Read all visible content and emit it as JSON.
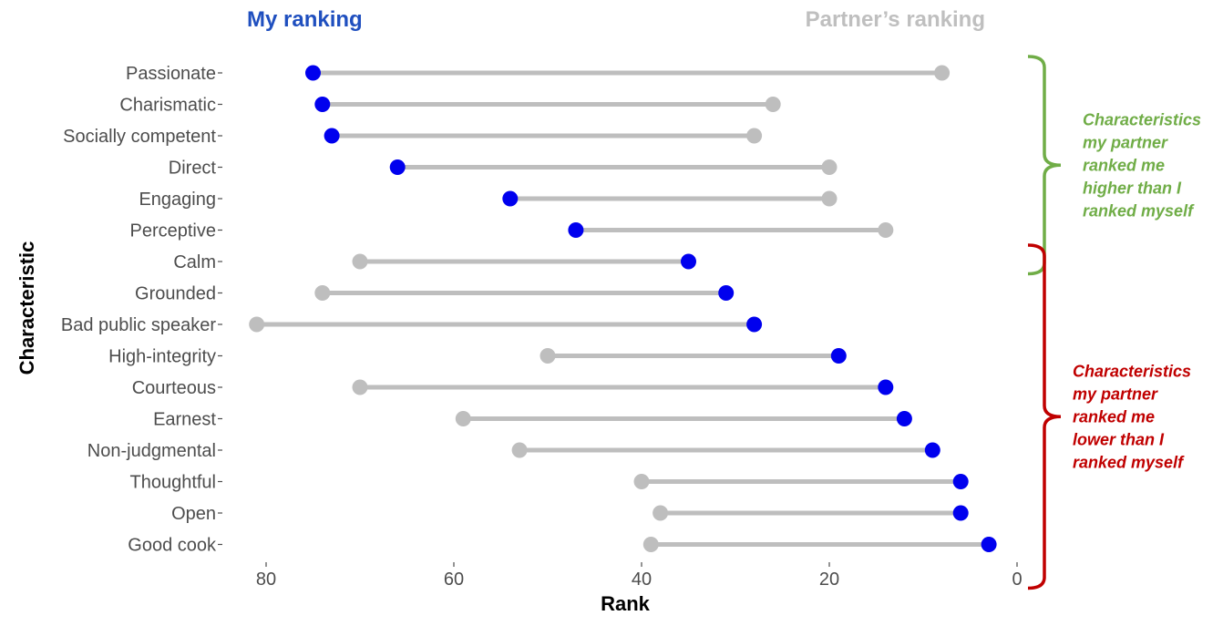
{
  "chart_data": {
    "type": "dumbbell",
    "series": [
      {
        "key": "mine",
        "name": "My ranking",
        "color": "#0000ee"
      },
      {
        "key": "partner",
        "name": "Partner’s ranking",
        "color": "#bebebe"
      }
    ],
    "xlabel": "Rank",
    "ylabel": "Characteristic",
    "x_reversed": true,
    "xlim": [
      85,
      0
    ],
    "xticks": [
      80,
      60,
      40,
      20,
      0
    ],
    "grid": false,
    "items": [
      {
        "label": "Passionate",
        "mine": 75,
        "partner": 8
      },
      {
        "label": "Charismatic",
        "mine": 74,
        "partner": 26
      },
      {
        "label": "Socially competent",
        "mine": 73,
        "partner": 28
      },
      {
        "label": "Direct",
        "mine": 66,
        "partner": 20
      },
      {
        "label": "Engaging",
        "mine": 54,
        "partner": 20
      },
      {
        "label": "Perceptive",
        "mine": 47,
        "partner": 14
      },
      {
        "label": "Calm",
        "mine": 35,
        "partner": 70
      },
      {
        "label": "Grounded",
        "mine": 31,
        "partner": 74
      },
      {
        "label": "Bad public speaker",
        "mine": 28,
        "partner": 81
      },
      {
        "label": "High-integrity",
        "mine": 19,
        "partner": 50
      },
      {
        "label": "Courteous",
        "mine": 14,
        "partner": 70
      },
      {
        "label": "Earnest",
        "mine": 12,
        "partner": 59
      },
      {
        "label": "Non-judgmental",
        "mine": 9,
        "partner": 53
      },
      {
        "label": "Thoughtful",
        "mine": 6,
        "partner": 40
      },
      {
        "label": "Open",
        "mine": 6,
        "partner": 38
      },
      {
        "label": "Good cook",
        "mine": 3,
        "partner": 39
      }
    ],
    "annotations": [
      {
        "lines": [
          "Characteristics",
          "my partner",
          "ranked me",
          "higher than I",
          "ranked myself"
        ],
        "color": "#70ad47",
        "from_item": 0,
        "to_item": 5
      },
      {
        "lines": [
          "Characteristics",
          "my partner",
          "ranked me",
          "lower than I",
          "ranked myself"
        ],
        "color": "#c00000",
        "from_item": 6,
        "to_item": 15
      }
    ],
    "header_colors": {
      "mine": "#1f4fbf",
      "partner": "#bfbfbf"
    }
  }
}
